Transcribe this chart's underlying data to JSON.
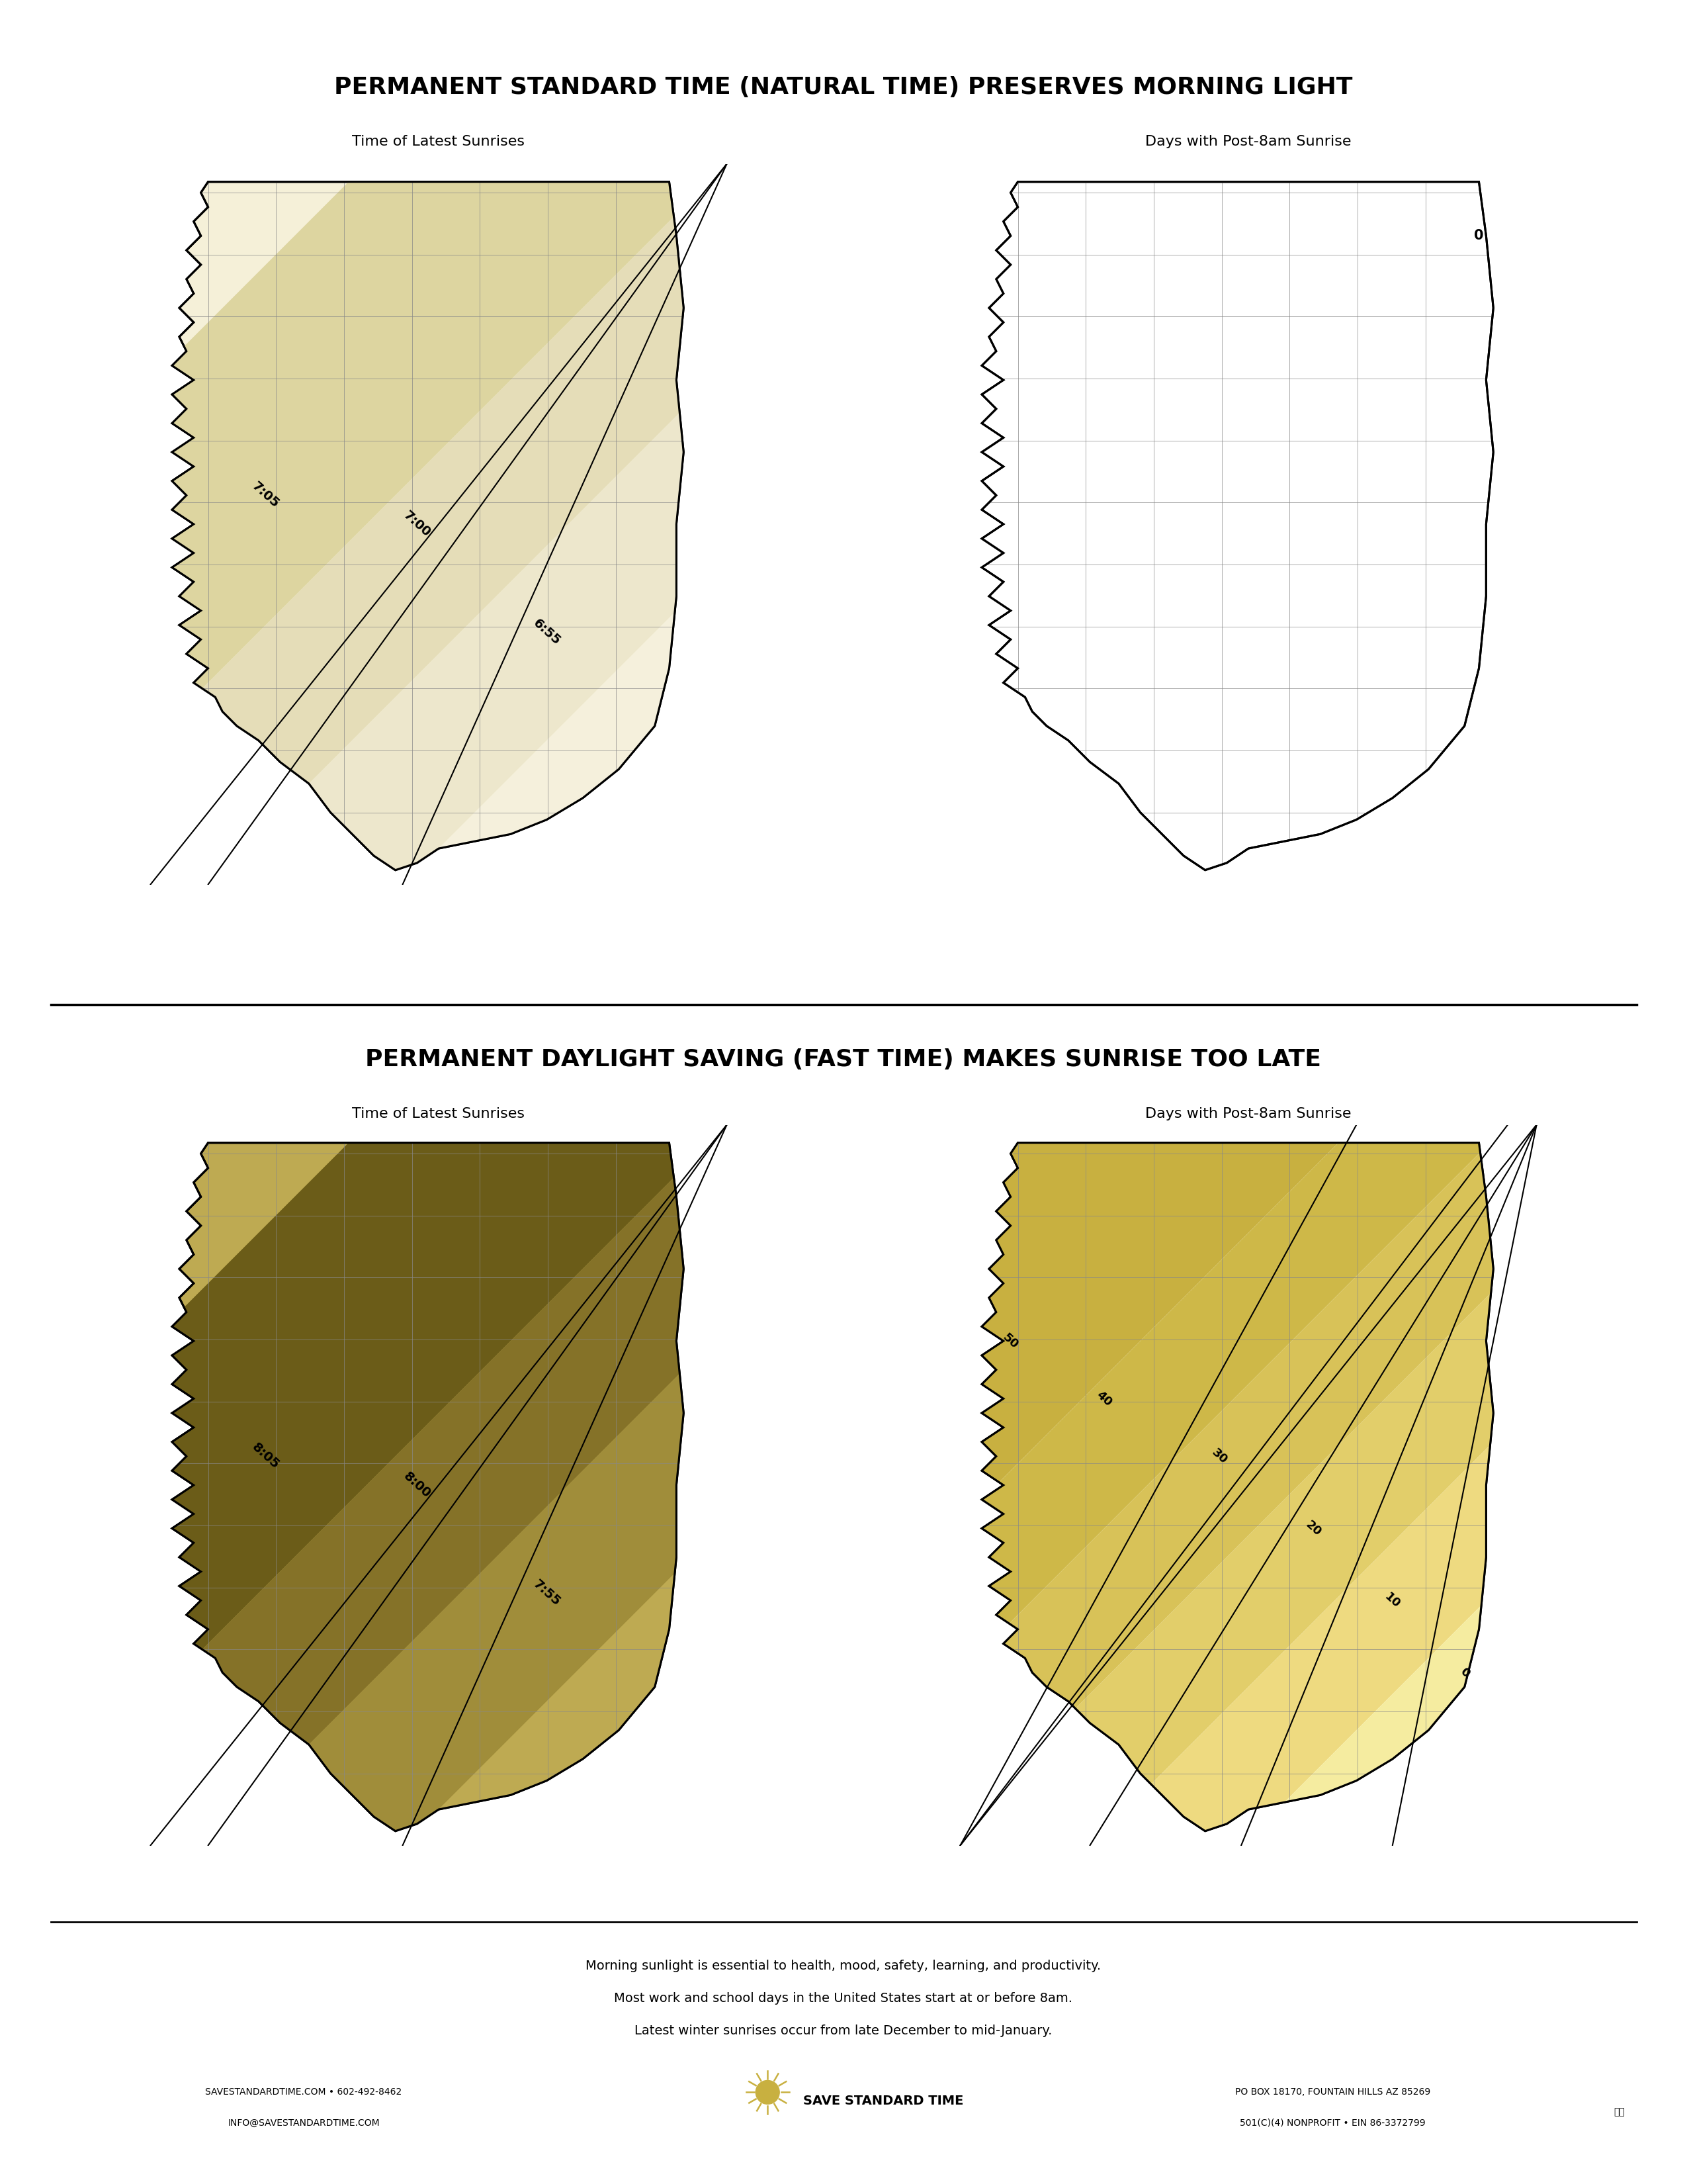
{
  "title_top": "PERMANENT STANDARD TIME (NATURAL TIME) PRESERVES MORNING LIGHT",
  "title_bottom": "PERMANENT DAYLIGHT SAVING (FAST TIME) MAKES SUNRISE TOO LATE",
  "subtitle_left": "Time of Latest Sunrises",
  "subtitle_right": "Days with Post-8am Sunrise",
  "footer_line1": "Morning sunlight is essential to health, mood, safety, learning, and productivity.",
  "footer_line2": "Most work and school days in the United States start at or before 8am.",
  "footer_line3": "Latest winter sunrises occur from late December to mid-January.",
  "footer_left1": "SAVESTANDARDTIME.COM • 602-492-8462",
  "footer_left2": "INFO@SAVESTANDARDTIME.COM",
  "footer_center": "SAVE STANDARD TIME",
  "footer_right1": "PO BOX 18170, FOUNTAIN HILLS AZ 85269",
  "footer_right2": "501(C)(4) NONPROFIT • EIN 86-3372799",
  "top_left_labels": [
    "7:05",
    "7:00",
    "6:55"
  ],
  "bottom_left_labels": [
    "8:05",
    "8:00",
    "7:55"
  ],
  "bottom_right_labels": [
    "50",
    "40",
    "30",
    "20",
    "10",
    "0"
  ],
  "top_right_label": "0",
  "color_light_yellow": "#F5F0D8",
  "color_tan_dark": "#A0922A",
  "color_tan_mid": "#C8B548",
  "color_tan_light": "#E8D878",
  "color_white": "#FFFFFF",
  "color_border": "#000000",
  "color_county": "#AAAAAA",
  "background": "#FFFFFF"
}
